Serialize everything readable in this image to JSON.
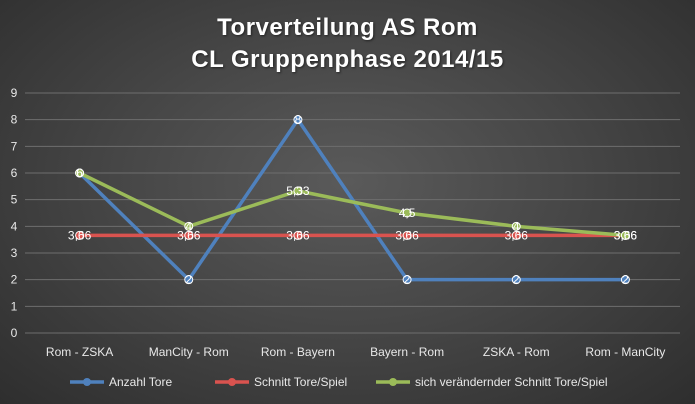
{
  "chart_data": {
    "type": "line",
    "title": "Torverteilung AS Rom",
    "subtitle": "CL Gruppenphase 2014/15",
    "categories": [
      "Rom - ZSKA",
      "ManCity - Rom",
      "Rom - Bayern",
      "Bayern - Rom",
      "ZSKA - Rom",
      "Rom - ManCity"
    ],
    "ylim": [
      0,
      9
    ],
    "yticks": [
      0,
      1,
      2,
      3,
      4,
      5,
      6,
      7,
      8,
      9
    ],
    "grid": true,
    "legend_position": "bottom",
    "series": [
      {
        "name": "Anzahl Tore",
        "color": "#4f81bd",
        "values": [
          6,
          2,
          8,
          2,
          2,
          2
        ],
        "labels": [
          "6",
          "2",
          "8",
          "2",
          "2",
          "2"
        ]
      },
      {
        "name": "Schnitt Tore/Spiel",
        "color": "#d9534f",
        "values": [
          3.66,
          3.66,
          3.66,
          3.66,
          3.66,
          3.66
        ],
        "labels": [
          "3,66",
          "3,66",
          "3,66",
          "3,66",
          "3,66",
          "3,66"
        ]
      },
      {
        "name": "sich verändernder  Schnitt Tore/Spiel",
        "color": "#9bbb59",
        "values": [
          6,
          4,
          5.33,
          4.5,
          4,
          3.66
        ],
        "labels": [
          "6",
          "4",
          "5,33",
          "4,5",
          "4",
          "3,66"
        ]
      }
    ]
  }
}
